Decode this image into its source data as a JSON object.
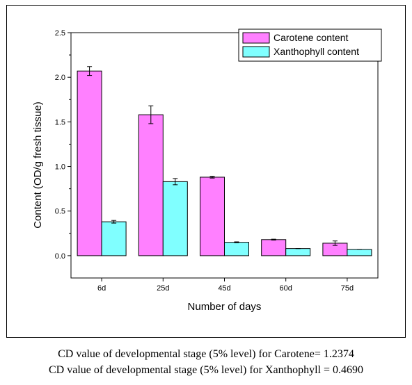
{
  "chart_data": {
    "type": "bar",
    "title": "",
    "xlabel": "Number of days",
    "ylabel": "Content (OD/g fresh tissue)",
    "categories": [
      "6d",
      "25d",
      "45d",
      "60d",
      "75d"
    ],
    "ylim": [
      -0.25,
      2.5
    ],
    "yticks": [
      0.0,
      0.5,
      1.0,
      1.5,
      2.0,
      2.5
    ],
    "ytick_labels": [
      "0.0",
      "0.5",
      "1.0",
      "1.5",
      "2.0",
      "2.5"
    ],
    "series": [
      {
        "name": "Carotene content",
        "values": [
          2.07,
          1.58,
          0.88,
          0.18,
          0.14
        ],
        "errors": [
          0.05,
          0.1,
          0.01,
          0.005,
          0.025
        ],
        "color": "#ff80ff"
      },
      {
        "name": "Xanthophyll content",
        "values": [
          0.38,
          0.83,
          0.15,
          0.08,
          0.07
        ],
        "errors": [
          0.015,
          0.035,
          0.005,
          0.0,
          0.0
        ],
        "color": "#80ffff"
      }
    ],
    "legend_position": "top-right",
    "grid": false
  },
  "captions": [
    "CD value of developmental stage (5% level) for Carotene= 1.2374",
    "CD value of developmental stage (5% level) for Xanthophyll = 0.4690"
  ]
}
